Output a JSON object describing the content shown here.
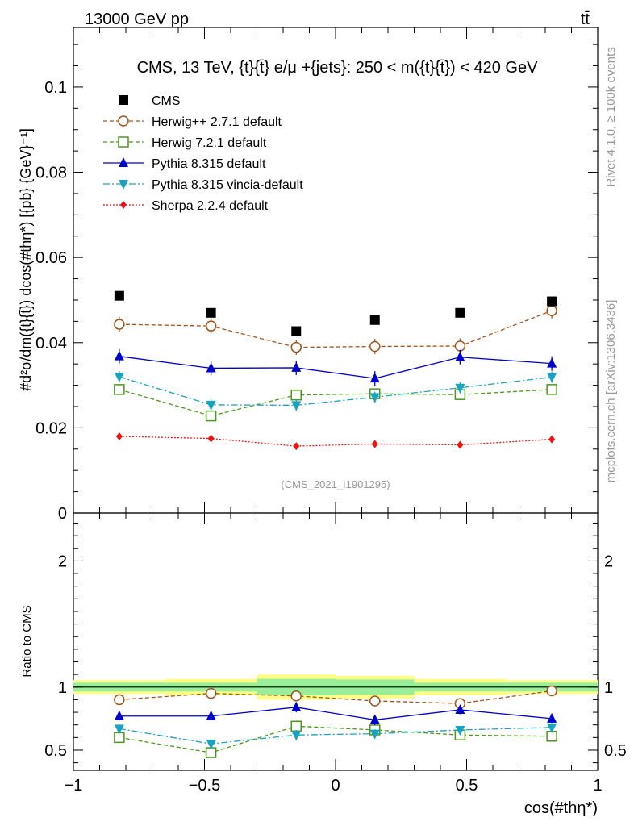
{
  "header": {
    "energy_label": "13000 GeV pp",
    "process_label": "tt̄"
  },
  "side_labels": {
    "rivet": "Rivet 4.1.0, ≥ 100k events",
    "mcplots": "mcplots.cern.ch [arXiv:1306.3436]"
  },
  "chart_data": [
    {
      "type": "scatter",
      "panel": "main",
      "title": "CMS, 13 TeV, {t}{t̄} e/μ +{jets}: 250 < m({t}{t̄}) < 420 GeV",
      "analysis_tag": "(CMS_2021_I1901295)",
      "ylabel": "#d²σ/dm({t}{t̄}) dcos(#thη*) [{pb} {GeV}⁻¹]",
      "xlabel": "cos(#thη*)",
      "xlim": [
        -1,
        1
      ],
      "ylim": [
        0,
        0.114
      ],
      "y_tick_labels": [
        "0",
        "0.02",
        "0.04",
        "0.06",
        "0.08",
        "0.1"
      ],
      "x_tick_labels": [
        "−1",
        "−0.5",
        "0",
        "0.5",
        "1"
      ],
      "x": [
        -0.825,
        -0.475,
        -0.15,
        0.15,
        0.475,
        0.825
      ],
      "x_edges": [
        -1,
        -0.65,
        -0.3,
        0,
        0.3,
        0.65,
        1
      ],
      "series": [
        {
          "name": "CMS",
          "color": "#000000",
          "marker": "square-filled",
          "line": "none",
          "values": [
            0.051,
            0.047,
            0.0427,
            0.0453,
            0.047,
            0.0497
          ],
          "errors": [
            0.0003,
            0.0003,
            0.0003,
            0.0003,
            0.0003,
            0.0003
          ]
        },
        {
          "name": "Herwig++ 2.7.1 default",
          "color": "#a0541a",
          "marker": "circle-open",
          "line": "dashed",
          "values": [
            0.0443,
            0.0439,
            0.0389,
            0.0391,
            0.0392,
            0.0475
          ],
          "errors": [
            0.0018,
            0.0018,
            0.0018,
            0.0018,
            0.0018,
            0.0018
          ]
        },
        {
          "name": "Herwig 7.2.1 default",
          "color": "#4a9a1a",
          "marker": "square-open",
          "line": "dashed",
          "values": [
            0.029,
            0.0228,
            0.0277,
            0.028,
            0.0278,
            0.029
          ],
          "errors": [
            0.0012,
            0.0012,
            0.0012,
            0.0012,
            0.0012,
            0.0012
          ]
        },
        {
          "name": "Pythia 8.315 default",
          "color": "#0000cc",
          "marker": "triangle-up-filled",
          "line": "solid",
          "values": [
            0.0368,
            0.034,
            0.0341,
            0.0316,
            0.0366,
            0.0351
          ],
          "errors": [
            0.0017,
            0.0017,
            0.0017,
            0.0017,
            0.0017,
            0.0017
          ]
        },
        {
          "name": "Pythia 8.315 vincia-default",
          "color": "#1aa3c0",
          "marker": "triangle-down-filled",
          "line": "dashdot",
          "values": [
            0.032,
            0.0254,
            0.0253,
            0.0272,
            0.0294,
            0.0319
          ],
          "errors": [
            0.0013,
            0.0013,
            0.0013,
            0.0013,
            0.0013,
            0.0013
          ]
        },
        {
          "name": "Sherpa 2.2.4 default",
          "color": "#ee1111",
          "marker": "diamond-filled",
          "line": "dotted",
          "values": [
            0.018,
            0.0175,
            0.0157,
            0.0162,
            0.016,
            0.0173
          ],
          "errors": [
            0.0004,
            0.0004,
            0.0004,
            0.0004,
            0.0004,
            0.0004
          ]
        }
      ]
    },
    {
      "type": "scatter",
      "panel": "ratio",
      "ylabel": "Ratio to CMS",
      "xlabel": "cos(#thη*)",
      "xlim": [
        -1,
        1
      ],
      "ylim": [
        0.34,
        2.38
      ],
      "y_tick_labels": [
        "0.5",
        "1",
        "2"
      ],
      "x_tick_labels": [
        "−1",
        "−0.5",
        "0",
        "0.5",
        "1"
      ],
      "x": [
        -0.825,
        -0.475,
        -0.15,
        0.15,
        0.475,
        0.825
      ],
      "uncertainty_bands": {
        "colors": {
          "inner": "#99ee99",
          "outer": "#ffff88"
        },
        "inner": [
          0.035,
          0.035,
          0.065,
          0.06,
          0.035,
          0.035
        ],
        "outer": [
          0.055,
          0.065,
          0.1,
          0.09,
          0.065,
          0.055
        ]
      },
      "series": [
        {
          "name": "Herwig++ 2.7.1 default",
          "values": [
            0.9,
            0.95,
            0.93,
            0.89,
            0.87,
            0.97
          ],
          "errors": [
            0.035,
            0.035,
            0.04,
            0.035,
            0.035,
            0.035
          ]
        },
        {
          "name": "Herwig 7.2.1 default",
          "values": [
            0.6,
            0.48,
            0.69,
            0.66,
            0.62,
            0.61
          ],
          "errors": [
            0.03,
            0.03,
            0.035,
            0.03,
            0.03,
            0.03
          ]
        },
        {
          "name": "Pythia 8.315 default",
          "values": [
            0.77,
            0.77,
            0.84,
            0.74,
            0.82,
            0.75
          ],
          "errors": [
            0.035,
            0.035,
            0.04,
            0.04,
            0.035,
            0.035
          ]
        },
        {
          "name": "Pythia 8.315 vincia-default",
          "values": [
            0.67,
            0.55,
            0.62,
            0.63,
            0.66,
            0.68
          ],
          "errors": [
            0.03,
            0.03,
            0.04,
            0.035,
            0.03,
            0.03
          ]
        }
      ]
    }
  ]
}
